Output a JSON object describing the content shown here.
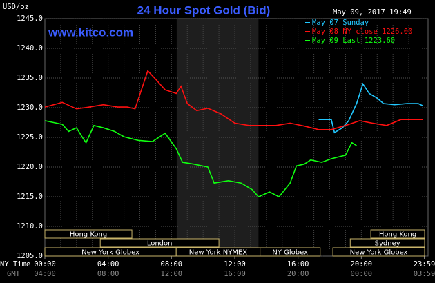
{
  "chart_data": {
    "type": "line",
    "title": "24 Hour Spot Gold (Bid)",
    "subtitle": "www.kitco.com",
    "date": "May 09, 2017 19:49",
    "y_label": "USD/oz",
    "x_label": "NY Time",
    "x2_label": "GMT",
    "xlim": [
      0,
      24
    ],
    "xticks": [
      {
        "value": 0,
        "label": "00:00"
      },
      {
        "value": 4,
        "label": "04:00"
      },
      {
        "value": 8,
        "label": "08:00"
      },
      {
        "value": 12,
        "label": "12:00"
      },
      {
        "value": 16,
        "label": "16:00"
      },
      {
        "value": 20,
        "label": "20:00"
      },
      {
        "value": 23.98,
        "label": "23:59"
      }
    ],
    "xticks2": [
      "04:00",
      "08:00",
      "12:00",
      "16:00",
      "20:00",
      "00:00",
      "03:59"
    ],
    "ylim": [
      1205,
      1245
    ],
    "yticks": [
      {
        "value": 1205,
        "label": "1205.0"
      },
      {
        "value": 1210,
        "label": "1210.0"
      },
      {
        "value": 1215,
        "label": "1215.0"
      },
      {
        "value": 1220,
        "label": "1220.0"
      },
      {
        "value": 1225,
        "label": "1225.0"
      },
      {
        "value": 1230,
        "label": "1230.0"
      },
      {
        "value": 1235,
        "label": "1235.0"
      },
      {
        "value": 1240,
        "label": "1240.0"
      },
      {
        "value": 1245,
        "label": "1245.0"
      }
    ],
    "grid": true,
    "shaded": [
      8.33,
      13.5
    ],
    "series": [
      {
        "name": "May 07 Sunday",
        "color": "#22c8ff",
        "x": [
          17.3,
          18.1,
          18.3,
          18.8,
          19.2,
          19.7,
          20.1,
          20.5,
          21.0,
          21.4,
          22.1,
          22.9,
          23.6,
          23.9
        ],
        "values": [
          1228.0,
          1228.0,
          1225.8,
          1226.6,
          1227.8,
          1230.7,
          1234.0,
          1232.4,
          1231.6,
          1230.7,
          1230.5,
          1230.7,
          1230.7,
          1230.3
        ]
      },
      {
        "name": "May 08 NY close 1226.00",
        "color": "#ff1010",
        "x": [
          0,
          1.1,
          2.0,
          2.8,
          3.7,
          4.6,
          5.2,
          5.7,
          6.1,
          6.5,
          7.0,
          7.6,
          8.3,
          8.6,
          9.0,
          9.6,
          10.3,
          11.1,
          12.0,
          12.9,
          13.8,
          14.6,
          15.5,
          16.4,
          17.3,
          18.1,
          19.0,
          19.9,
          20.7,
          21.6,
          22.5,
          23.4,
          23.9
        ],
        "values": [
          1230.1,
          1230.9,
          1229.8,
          1230.1,
          1230.5,
          1230.1,
          1230.1,
          1229.8,
          1233.0,
          1236.2,
          1234.8,
          1233.0,
          1232.4,
          1233.6,
          1230.7,
          1229.5,
          1229.9,
          1229.0,
          1227.4,
          1227.0,
          1227.0,
          1227.0,
          1227.4,
          1226.9,
          1226.3,
          1226.3,
          1227.0,
          1227.8,
          1227.4,
          1227.0,
          1228.0,
          1228.0,
          1228.0
        ]
      },
      {
        "name": "May 09 Last 1223.60",
        "color": "#10ff10",
        "x": [
          0,
          1.1,
          1.5,
          2.0,
          2.4,
          2.6,
          3.1,
          3.7,
          4.4,
          5.0,
          5.9,
          6.8,
          7.6,
          8.3,
          8.7,
          9.4,
          10.3,
          10.7,
          11.6,
          12.4,
          13.1,
          13.5,
          14.2,
          14.8,
          15.5,
          15.9,
          16.4,
          16.8,
          17.5,
          18.1,
          19.0,
          19.4,
          19.7
        ],
        "values": [
          1227.8,
          1227.2,
          1226.0,
          1226.6,
          1224.9,
          1224.1,
          1227.0,
          1226.6,
          1226.0,
          1225.1,
          1224.5,
          1224.3,
          1225.7,
          1223.1,
          1220.8,
          1220.5,
          1220.0,
          1217.3,
          1217.7,
          1217.3,
          1216.2,
          1215.0,
          1215.8,
          1215.0,
          1217.3,
          1220.2,
          1220.5,
          1221.2,
          1220.8,
          1221.4,
          1222.0,
          1224.1,
          1223.6
        ]
      }
    ],
    "session_rows": [
      [
        {
          "label": "Hong Kong",
          "start": 0,
          "end": 5.5
        },
        {
          "label": "Hong Kong",
          "start": 20.6,
          "end": 24
        }
      ],
      [
        {
          "label": "London",
          "start": 3.5,
          "end": 11
        },
        {
          "label": "Sydney",
          "start": 19.3,
          "end": 24
        }
      ],
      [
        {
          "label": "New York Globex",
          "start": 0,
          "end": 8.3
        },
        {
          "label": "New York NYMEX",
          "start": 8.3,
          "end": 13.6
        },
        {
          "label": "NY Globex",
          "start": 13.6,
          "end": 17.4
        },
        {
          "label": "New York Globex",
          "start": 18.2,
          "end": 24
        }
      ]
    ]
  }
}
